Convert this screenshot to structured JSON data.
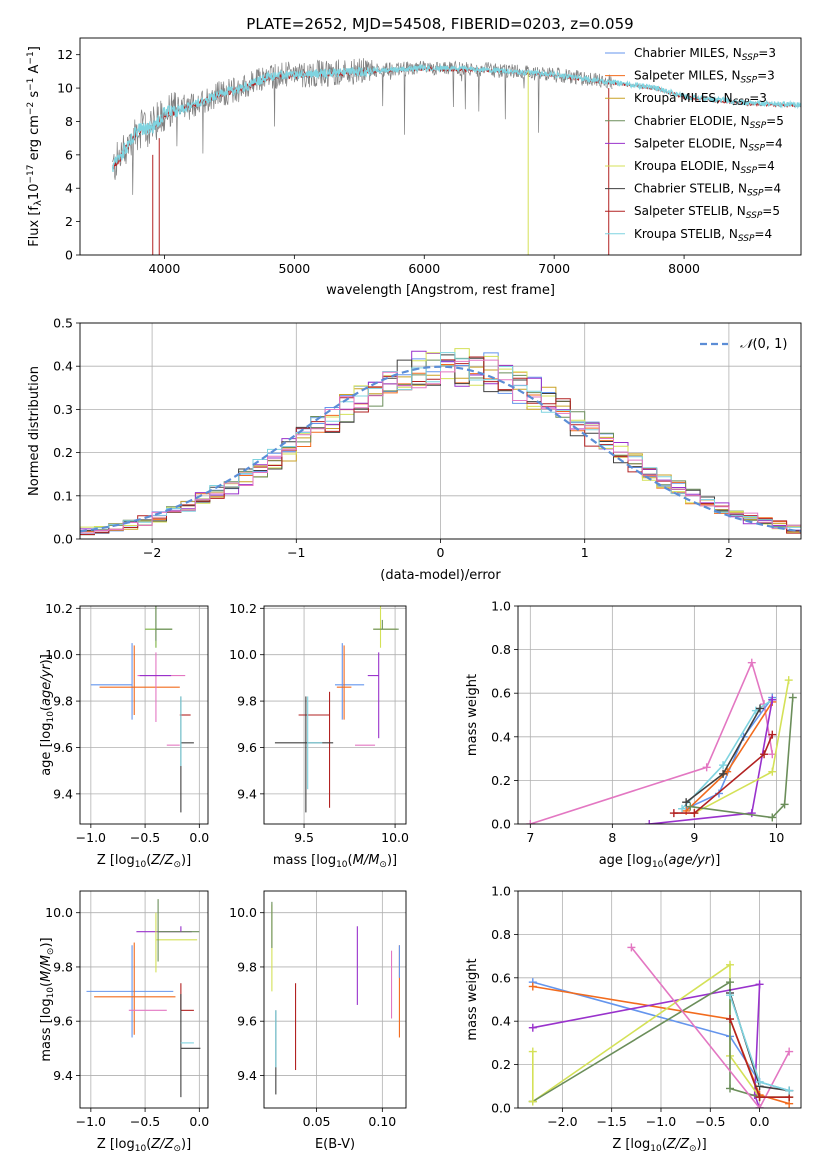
{
  "figure_title": "PLATE=2652, MJD=54508, FIBERID=0203, z=0.059",
  "colors": {
    "chab_miles": "#6495ED",
    "salp_miles": "#F26B1D",
    "krou_miles": "#C9A227",
    "chab_elodie": "#6B8E5A",
    "salp_elodie": "#9932CC",
    "krou_elodie": "#D4E157",
    "chab_stelib": "#404040",
    "salp_stelib": "#B22222",
    "krou_stelib": "#7FD4E0",
    "extra_pink": "#E377C2",
    "extra_orange": "#FF7F50",
    "extra_green": "#7CB342",
    "gaussian": "#5B8DD6",
    "data": "#808080"
  },
  "chart_data": [
    {
      "id": "spectrum",
      "type": "line",
      "xlabel": "wavelength [Angstrom, rest frame]",
      "ylabel_text": "Flux [f",
      "xlim": [
        3350,
        8900
      ],
      "ylim": [
        0,
        13
      ],
      "xticks": [
        4000,
        5000,
        6000,
        7000,
        8000
      ],
      "yticks": [
        0,
        2,
        4,
        6,
        8,
        10,
        12
      ],
      "grid": false,
      "legend_position": "top-right",
      "legend": [
        {
          "label": "Chabrier MILES, N",
          "n": "=3",
          "color_key": "chab_miles"
        },
        {
          "label": "Salpeter MILES, N",
          "n": "=3",
          "color_key": "salp_miles"
        },
        {
          "label": "Kroupa MILES, N",
          "n": "=3",
          "color_key": "krou_miles"
        },
        {
          "label": "Chabrier ELODIE, N",
          "n": "=5",
          "color_key": "chab_elodie"
        },
        {
          "label": "Salpeter ELODIE, N",
          "n": "=4",
          "color_key": "salp_elodie"
        },
        {
          "label": "Kroupa ELODIE, N",
          "n": "=4",
          "color_key": "krou_elodie"
        },
        {
          "label": "Chabrier STELIB, N",
          "n": "=4",
          "color_key": "chab_stelib"
        },
        {
          "label": "Salpeter STELIB, N",
          "n": "=5",
          "color_key": "salp_stelib"
        },
        {
          "label": "Kroupa STELIB, N",
          "n": "=4",
          "color_key": "krou_stelib"
        }
      ],
      "continuum_anchors": [
        [
          3600,
          5.2
        ],
        [
          3700,
          6.4
        ],
        [
          3800,
          7.5
        ],
        [
          3900,
          7.6
        ],
        [
          4000,
          8.5
        ],
        [
          4200,
          8.9
        ],
        [
          4400,
          9.6
        ],
        [
          4600,
          10.0
        ],
        [
          4800,
          10.7
        ],
        [
          5000,
          10.8
        ],
        [
          5500,
          11.0
        ],
        [
          6000,
          11.2
        ],
        [
          6500,
          11.1
        ],
        [
          7000,
          10.8
        ],
        [
          7300,
          10.5
        ],
        [
          7600,
          10.2
        ],
        [
          7800,
          10.0
        ],
        [
          8000,
          9.5
        ],
        [
          8500,
          9.1
        ],
        [
          8900,
          9.0
        ]
      ]
    },
    {
      "id": "residuals",
      "type": "histogram",
      "xlabel": "(data-model)/error",
      "ylabel": "Normed distribution",
      "xlim": [
        -2.5,
        2.5
      ],
      "ylim": [
        0,
        0.5
      ],
      "xticks": [
        -2,
        -1,
        0,
        1,
        2
      ],
      "yticks": [
        0.0,
        0.1,
        0.2,
        0.3,
        0.4,
        0.5
      ],
      "grid": true,
      "bin_width": 0.1,
      "legend_position": "top-right",
      "legend_label": "(0, 1)",
      "legend_symbol": "𝒩",
      "gaussian": {
        "mu": 0,
        "sigma": 1
      }
    },
    {
      "id": "z_age",
      "type": "errorbar",
      "xlabel": "Z [log",
      "ylabel": "age  [log",
      "xlim": [
        -1.1,
        0.08
      ],
      "ylim": [
        9.27,
        10.21
      ],
      "xticks": [
        -1.0,
        -0.5,
        0.0
      ],
      "yticks": [
        9.4,
        9.6,
        9.8,
        10.0,
        10.2
      ],
      "points": [
        {
          "x": -0.62,
          "xerr": [
            0.38,
            0.0
          ],
          "y": 9.87,
          "yerr": [
            0.15,
            0.18
          ],
          "color_key": "chab_miles"
        },
        {
          "x": -0.6,
          "xerr": [
            0.32,
            0.42
          ],
          "y": 9.86,
          "yerr": [
            0.12,
            0.18
          ],
          "color_key": "salp_miles"
        },
        {
          "x": -0.4,
          "xerr": [
            0.17,
            0.27
          ],
          "y": 9.91,
          "yerr": [
            0.2,
            0.1
          ],
          "color_key": "extra_pink"
        },
        {
          "x": -0.4,
          "xerr": [
            0.15,
            0.14
          ],
          "y": 9.91,
          "yerr": [
            0.0,
            0.0
          ],
          "color_key": "salp_elodie"
        },
        {
          "x": -0.3,
          "xerr": [
            0.0,
            0.12
          ],
          "y": 9.61,
          "yerr": [
            0.0,
            0.0
          ],
          "color_key": "extra_pink"
        },
        {
          "x": -0.4,
          "xerr": [
            0.1,
            0.15
          ],
          "y": 10.11,
          "yerr": [
            0.08,
            0.1
          ],
          "color_key": "extra_green"
        },
        {
          "x": -0.4,
          "xerr": [
            0.0,
            0.15
          ],
          "y": 10.11,
          "yerr": [
            0.05,
            0.1
          ],
          "color_key": "chab_elodie"
        },
        {
          "x": -0.18,
          "xerr": [
            0.0,
            0.1
          ],
          "y": 9.74,
          "yerr": [
            0.0,
            0.0
          ],
          "color_key": "salp_stelib"
        },
        {
          "x": -0.17,
          "xerr": [
            0.0,
            0.12
          ],
          "y": 9.62,
          "yerr": [
            0.3,
            0.2
          ],
          "color_key": "chab_stelib"
        },
        {
          "x": -0.17,
          "xerr": [
            0.0,
            0.0
          ],
          "y": 9.62,
          "yerr": [
            0.1,
            0.2
          ],
          "color_key": "krou_stelib"
        }
      ]
    },
    {
      "id": "mass_age",
      "type": "errorbar",
      "xlabel": "mass [log",
      "xlim": [
        9.28,
        10.06
      ],
      "ylim": [
        9.27,
        10.21
      ],
      "xticks": [
        9.5,
        10.0
      ],
      "yticks": [
        9.4,
        9.6,
        9.8,
        10.0,
        10.2
      ],
      "points": [
        {
          "x": 9.71,
          "xerr": [
            0.04,
            0.12
          ],
          "y": 9.87,
          "yerr": [
            0.15,
            0.18
          ],
          "color_key": "chab_miles"
        },
        {
          "x": 9.72,
          "xerr": [
            0.04,
            0.04
          ],
          "y": 9.86,
          "yerr": [
            0.14,
            0.18
          ],
          "color_key": "salp_miles"
        },
        {
          "x": 9.91,
          "xerr": [
            0.06,
            0.0
          ],
          "y": 9.91,
          "yerr": [
            0.27,
            0.1
          ],
          "color_key": "salp_elodie"
        },
        {
          "x": 9.89,
          "xerr": [
            0.11,
            0.0
          ],
          "y": 9.61,
          "yerr": [
            0.0,
            0.0
          ],
          "color_key": "extra_pink"
        },
        {
          "x": 9.92,
          "xerr": [
            0.04,
            0.09
          ],
          "y": 10.11,
          "yerr": [
            0.08,
            0.1
          ],
          "color_key": "krou_elodie"
        },
        {
          "x": 9.93,
          "xerr": [
            0.05,
            0.09
          ],
          "y": 10.11,
          "yerr": [
            0.0,
            0.04
          ],
          "color_key": "chab_elodie"
        },
        {
          "x": 9.64,
          "xerr": [
            0.17,
            0.0
          ],
          "y": 9.74,
          "yerr": [
            0.4,
            0.1
          ],
          "color_key": "salp_stelib"
        },
        {
          "x": 9.51,
          "xerr": [
            0.17,
            0.15
          ],
          "y": 9.62,
          "yerr": [
            0.3,
            0.2
          ],
          "color_key": "chab_stelib"
        },
        {
          "x": 9.52,
          "xerr": [
            0.0,
            0.08
          ],
          "y": 9.62,
          "yerr": [
            0.2,
            0.2
          ],
          "color_key": "krou_stelib"
        }
      ]
    },
    {
      "id": "age_weight",
      "type": "line",
      "xlabel": "age  [log",
      "ylabel": "mass weight",
      "xlim": [
        6.85,
        10.3
      ],
      "ylim": [
        0,
        1.0
      ],
      "xticks": [
        7,
        8,
        9,
        10
      ],
      "yticks": [
        0.0,
        0.2,
        0.4,
        0.6,
        0.8,
        1.0
      ],
      "grid": true,
      "series": [
        {
          "color_key": "extra_pink",
          "x": [
            7.0,
            9.15,
            9.7,
            9.85,
            9.95
          ],
          "y": [
            0.0,
            0.26,
            0.74,
            0.55,
            0.32
          ]
        },
        {
          "color_key": "chab_miles",
          "x": [
            8.9,
            9.3,
            9.6,
            9.95
          ],
          "y": [
            0.07,
            0.14,
            0.4,
            0.58
          ]
        },
        {
          "color_key": "salp_miles",
          "x": [
            8.9,
            9.4,
            9.95
          ],
          "y": [
            0.06,
            0.24,
            0.56
          ]
        },
        {
          "color_key": "krou_stelib",
          "x": [
            8.85,
            9.35,
            9.75,
            9.95
          ],
          "y": [
            0.07,
            0.27,
            0.52,
            0.57
          ]
        },
        {
          "color_key": "salp_elodie",
          "x": [
            8.45,
            9.7,
            9.95
          ],
          "y": [
            0.0,
            0.05,
            0.57
          ]
        },
        {
          "color_key": "krou_elodie",
          "x": [
            9.0,
            9.95,
            10.15
          ],
          "y": [
            0.05,
            0.24,
            0.66
          ]
        },
        {
          "color_key": "chab_elodie",
          "x": [
            8.95,
            9.95,
            10.1,
            10.2
          ],
          "y": [
            0.08,
            0.03,
            0.09,
            0.58
          ]
        },
        {
          "color_key": "salp_stelib",
          "x": [
            8.75,
            9.0,
            9.85,
            9.95
          ],
          "y": [
            0.05,
            0.05,
            0.32,
            0.41
          ]
        },
        {
          "color_key": "chab_stelib",
          "x": [
            8.9,
            9.35,
            9.8
          ],
          "y": [
            0.1,
            0.23,
            0.53
          ]
        }
      ]
    },
    {
      "id": "z_mass",
      "type": "errorbar",
      "xlabel": "Z [log",
      "ylabel": "mass [log",
      "xlim": [
        -1.1,
        0.08
      ],
      "ylim": [
        9.28,
        10.08
      ],
      "xticks": [
        -1.0,
        -0.5,
        0.0
      ],
      "yticks": [
        9.4,
        9.6,
        9.8,
        10.0
      ],
      "points": [
        {
          "x": -0.62,
          "xerr": [
            0.42,
            0.38
          ],
          "y": 9.71,
          "yerr": [
            0.17,
            0.17
          ],
          "color_key": "chab_miles"
        },
        {
          "x": -0.6,
          "xerr": [
            0.37,
            0.38
          ],
          "y": 9.69,
          "yerr": [
            0.14,
            0.2
          ],
          "color_key": "salp_miles"
        },
        {
          "x": -0.3,
          "xerr": [
            0.35,
            0.0
          ],
          "y": 9.64,
          "yerr": [
            0.0,
            0.0
          ],
          "color_key": "extra_pink"
        },
        {
          "x": -0.4,
          "xerr": [
            0.18,
            0.33
          ],
          "y": 9.93,
          "yerr": [
            0.0,
            0.0
          ],
          "color_key": "salp_elodie"
        },
        {
          "x": -0.4,
          "xerr": [
            0.0,
            0.38
          ],
          "y": 9.9,
          "yerr": [
            0.12,
            0.1
          ],
          "color_key": "krou_elodie"
        },
        {
          "x": -0.38,
          "xerr": [
            0.0,
            0.38
          ],
          "y": 9.93,
          "yerr": [
            0.11,
            0.12
          ],
          "color_key": "chab_elodie"
        },
        {
          "x": -0.17,
          "xerr": [
            0.0,
            0.0
          ],
          "y": 9.93,
          "yerr": [
            0.0,
            0.02
          ],
          "color_key": "salp_elodie"
        },
        {
          "x": -0.17,
          "xerr": [
            0.0,
            0.12
          ],
          "y": 9.64,
          "yerr": [
            0.0,
            0.1
          ],
          "color_key": "salp_stelib"
        },
        {
          "x": -0.17,
          "xerr": [
            0.0,
            0.18
          ],
          "y": 9.5,
          "yerr": [
            0.18,
            0.2
          ],
          "color_key": "chab_stelib"
        },
        {
          "x": -0.17,
          "xerr": [
            0.0,
            0.12
          ],
          "y": 9.52,
          "yerr": [
            0.0,
            0.0
          ],
          "color_key": "krou_stelib"
        }
      ]
    },
    {
      "id": "ebv_mass",
      "type": "errorbar",
      "xlabel": "E(B-V)",
      "xlim": [
        0.01,
        0.118
      ],
      "ylim": [
        9.28,
        10.08
      ],
      "xticks": [
        0.05,
        0.1
      ],
      "xtick_labels": [
        "0.05",
        "0.10"
      ],
      "yticks": [
        9.4,
        9.6,
        9.8,
        10.0
      ],
      "points": [
        {
          "x": 0.016,
          "y": 9.87,
          "yerr": [
            0.16,
            0.16
          ],
          "color_key": "krou_elodie"
        },
        {
          "x": 0.016,
          "y": 9.87,
          "yerr": [
            0.0,
            0.17
          ],
          "color_key": "chab_elodie"
        },
        {
          "x": 0.019,
          "y": 9.48,
          "yerr": [
            0.15,
            0.16
          ],
          "color_key": "chab_stelib"
        },
        {
          "x": 0.019,
          "y": 9.48,
          "yerr": [
            0.05,
            0.16
          ],
          "color_key": "krou_stelib"
        },
        {
          "x": 0.034,
          "y": 9.58,
          "yerr": [
            0.16,
            0.16
          ],
          "color_key": "salp_stelib"
        },
        {
          "x": 0.081,
          "y": 9.81,
          "yerr": [
            0.15,
            0.14
          ],
          "color_key": "salp_elodie"
        },
        {
          "x": 0.107,
          "y": 9.73,
          "yerr": [
            0.12,
            0.13
          ],
          "color_key": "extra_pink"
        },
        {
          "x": 0.113,
          "y": 9.71,
          "yerr": [
            0.17,
            0.17
          ],
          "color_key": "salp_miles"
        },
        {
          "x": 0.113,
          "y": 9.76,
          "yerr": [
            0.0,
            0.12
          ],
          "color_key": "chab_miles"
        }
      ]
    },
    {
      "id": "z_weight",
      "type": "line",
      "xlabel": "Z [log",
      "ylabel": "mass weight",
      "xlim": [
        -2.45,
        0.42
      ],
      "ylim": [
        0,
        1.0
      ],
      "xticks": [
        -2.0,
        -1.5,
        -1.0,
        -0.5,
        0.0
      ],
      "yticks": [
        0.0,
        0.2,
        0.4,
        0.6,
        0.8,
        1.0
      ],
      "grid": true,
      "series": [
        {
          "color_key": "chab_miles",
          "x": [
            -2.3,
            -0.3,
            0.0,
            0.3
          ],
          "y": [
            0.58,
            0.33,
            0.12,
            0.08
          ]
        },
        {
          "color_key": "salp_miles",
          "x": [
            -2.3,
            -0.3,
            0.0,
            0.3
          ],
          "y": [
            0.56,
            0.41,
            0.06,
            0.02
          ]
        },
        {
          "color_key": "salp_elodie",
          "x": [
            -2.3,
            0.0,
            -0.05,
            0.0
          ],
          "y": [
            0.37,
            0.57,
            0.06,
            0.0
          ]
        },
        {
          "color_key": "krou_elodie",
          "x": [
            -2.3,
            -0.3,
            -0.3,
            0.0,
            0.3
          ],
          "y": [
            0.03,
            0.66,
            0.24,
            0.05,
            0.05
          ]
        },
        {
          "color_key": "chab_elodie",
          "x": [
            -2.3,
            -0.3,
            -0.3,
            0.0,
            0.3
          ],
          "y": [
            0.03,
            0.58,
            0.09,
            0.05,
            0.05
          ]
        },
        {
          "color_key": "krou_elodie",
          "x": [
            -2.3,
            -2.3
          ],
          "y": [
            0.03,
            0.26
          ]
        },
        {
          "color_key": "extra_pink",
          "x": [
            -1.3,
            0.0,
            0.3
          ],
          "y": [
            0.74,
            0.0,
            0.26
          ]
        },
        {
          "color_key": "salp_stelib",
          "x": [
            -0.3,
            0.0,
            0.3
          ],
          "y": [
            0.41,
            0.05,
            0.05
          ]
        },
        {
          "color_key": "chab_stelib",
          "x": [
            -0.3,
            0.0,
            0.3
          ],
          "y": [
            0.53,
            0.1,
            0.08
          ]
        },
        {
          "color_key": "krou_stelib",
          "x": [
            -0.3,
            0.0,
            0.3
          ],
          "y": [
            0.52,
            0.12,
            0.08
          ]
        }
      ]
    }
  ]
}
